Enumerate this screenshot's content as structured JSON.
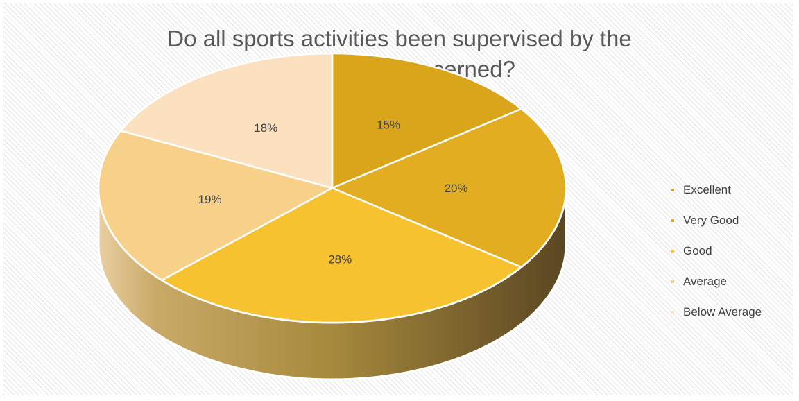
{
  "chart_data": {
    "type": "pie",
    "title": "Do all sports activities been supervised by the authorities concerned?",
    "title_lines": [
      "Do all sports activities been supervised by the",
      "authorities concerned?"
    ],
    "categories": [
      "Excellent",
      "Very Good",
      "Good",
      "Average",
      "Below Average"
    ],
    "values": [
      15,
      20,
      28,
      19,
      18
    ],
    "data_labels": [
      "15%",
      "20%",
      "28%",
      "19%",
      "18%"
    ],
    "colors": [
      "#d9a51b",
      "#e2ad20",
      "#f6c230",
      "#f7d08a",
      "#fbe1c0"
    ],
    "legend_position": "right",
    "style": "3d"
  }
}
